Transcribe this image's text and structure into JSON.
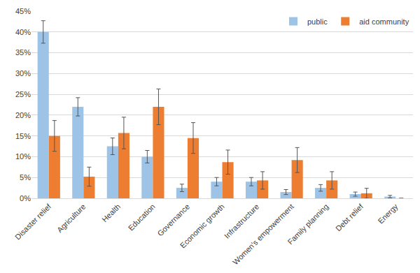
{
  "chart_data": {
    "type": "bar",
    "categories": [
      "Disaster relief",
      "Agriculture",
      "Health",
      "Education",
      "Governance",
      "Economic growth",
      "Infrastructure",
      "Women's empowerment",
      "Family planning",
      "Debt relief",
      "Energy"
    ],
    "series": [
      {
        "name": "public",
        "color": "#9dc3e6",
        "values": [
          40,
          22,
          12.5,
          10,
          2.5,
          4,
          4,
          1.5,
          2.5,
          1,
          0.4
        ],
        "errors": [
          2.7,
          2.2,
          2,
          1.5,
          0.9,
          1,
          1,
          0.6,
          0.8,
          0.5,
          0.3
        ]
      },
      {
        "name": "aid community",
        "color": "#ed7d31",
        "values": [
          15,
          5.2,
          15.7,
          22,
          14.5,
          8.7,
          4.3,
          9.2,
          4.3,
          1.2,
          0
        ],
        "errors": [
          3.7,
          2.3,
          3.8,
          4.3,
          3.7,
          2.9,
          2.1,
          3,
          2.1,
          1.2,
          0
        ]
      }
    ],
    "ylim": [
      0,
      45
    ],
    "yticks": [
      {
        "value": 0,
        "label": "0%"
      },
      {
        "value": 5,
        "label": "5%"
      },
      {
        "value": 10,
        "label": "10%"
      },
      {
        "value": 15,
        "label": "15%"
      },
      {
        "value": 20,
        "label": "20%"
      },
      {
        "value": 25,
        "label": "25%"
      },
      {
        "value": 30,
        "label": "30%"
      },
      {
        "value": 35,
        "label": "35%"
      },
      {
        "value": 40,
        "label": "40%"
      },
      {
        "value": 45,
        "label": "45%"
      }
    ],
    "grid": true,
    "legend": "top right"
  }
}
